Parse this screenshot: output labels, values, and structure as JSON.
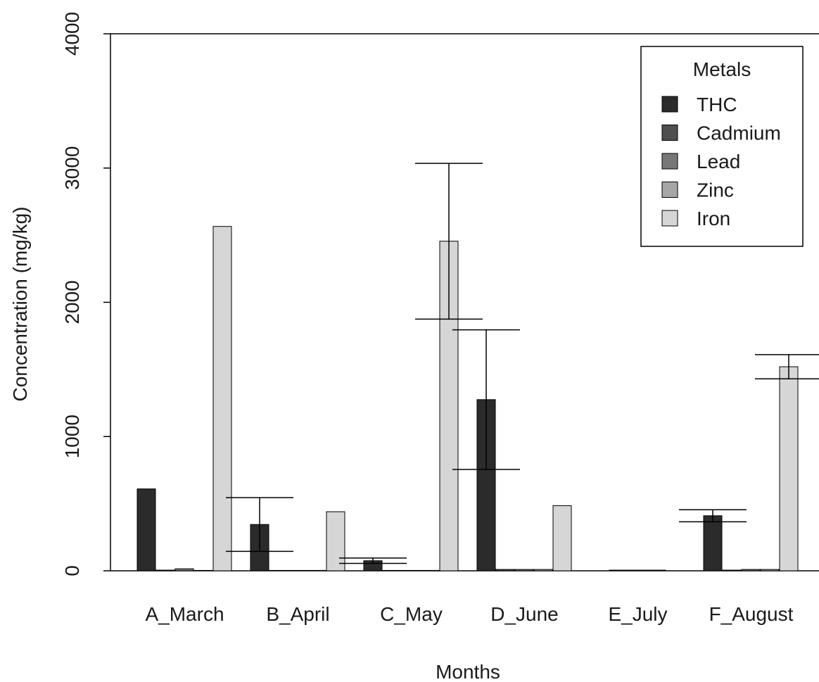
{
  "chart_data": {
    "type": "bar",
    "title": "",
    "xlabel": "Months",
    "ylabel": "Concentration (mg/kg)",
    "ylim": [
      0,
      4000
    ],
    "yticks": [
      0,
      1000,
      2000,
      3000,
      4000
    ],
    "grid": false,
    "legend_position": "top-right",
    "legend_title": "Metals",
    "categories": [
      "A_March",
      "B_April",
      "C_May",
      "D_June",
      "E_July",
      "F_August"
    ],
    "series": [
      {
        "name": "THC",
        "color": "#2b2b2b",
        "values": [
          610,
          345,
          75,
          1275,
          0,
          410
        ],
        "errors": [
          0,
          200,
          20,
          520,
          0,
          45
        ]
      },
      {
        "name": "Cadmium",
        "color": "#4f4f4f",
        "values": [
          5,
          3,
          3,
          10,
          5,
          5
        ],
        "errors": [
          0,
          0,
          0,
          0,
          0,
          0
        ]
      },
      {
        "name": "Lead",
        "color": "#777777",
        "values": [
          15,
          3,
          3,
          10,
          5,
          10
        ],
        "errors": [
          0,
          0,
          0,
          0,
          0,
          0
        ]
      },
      {
        "name": "Zinc",
        "color": "#a6a6a6",
        "values": [
          3,
          3,
          3,
          10,
          5,
          10
        ],
        "errors": [
          0,
          0,
          0,
          0,
          0,
          0
        ]
      },
      {
        "name": "Iron",
        "color": "#d6d6d6",
        "values": [
          2565,
          440,
          2455,
          485,
          0,
          1520
        ],
        "errors": [
          0,
          0,
          580,
          0,
          0,
          90
        ]
      }
    ]
  }
}
